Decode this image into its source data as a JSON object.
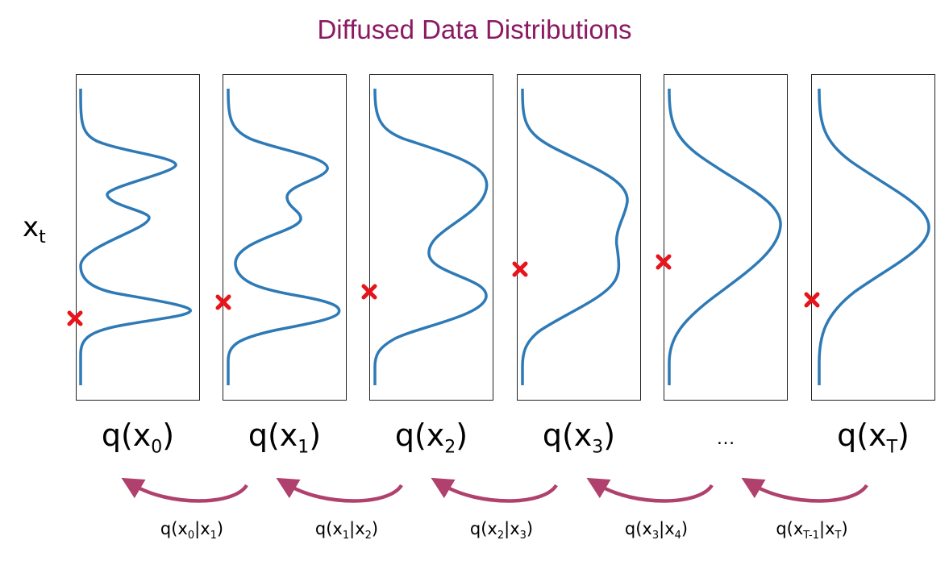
{
  "title": "Diffused Data Distributions",
  "y_axis": {
    "symbol": "x",
    "subscript": "t"
  },
  "distributions": [
    {
      "fn": "q(x",
      "sub": "0",
      "close": ")"
    },
    {
      "fn": "q(x",
      "sub": "1",
      "close": ")"
    },
    {
      "fn": "q(x",
      "sub": "2",
      "close": ")"
    },
    {
      "fn": "q(x",
      "sub": "3",
      "close": ")"
    },
    {
      "fn": "q(x",
      "sub": "T",
      "close": ")"
    }
  ],
  "ellipsis": "…",
  "conditionals": [
    {
      "a": "x",
      "a_sub": "0",
      "b": "x",
      "b_sub": "1"
    },
    {
      "a": "x",
      "a_sub": "1",
      "b": "x",
      "b_sub": "2"
    },
    {
      "a": "x",
      "a_sub": "2",
      "b": "x",
      "b_sub": "3"
    },
    {
      "a": "x",
      "a_sub": "3",
      "b": "x",
      "b_sub": "4"
    },
    {
      "a": "x",
      "a_sub": "T-1",
      "b": "x",
      "b_sub": "T"
    }
  ],
  "colors": {
    "curve": "#2e7ab6",
    "marker": "#e8141b",
    "arrow": "#b0416e",
    "title": "#8b1a62"
  }
}
